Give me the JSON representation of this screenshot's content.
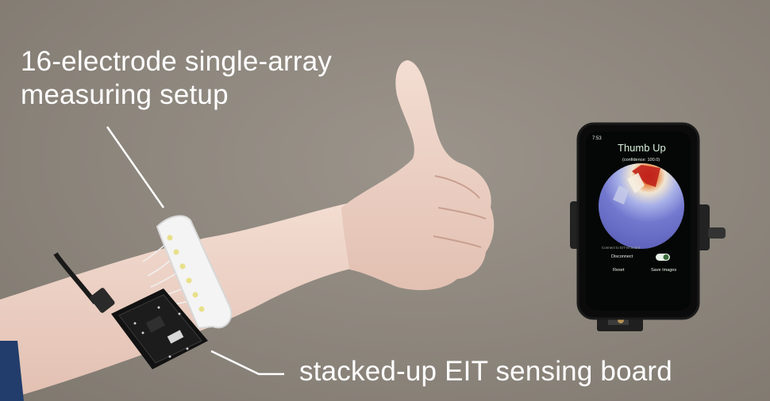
{
  "annotations": {
    "electrode_setup_line1": "16-electrode single-array",
    "electrode_setup_line2": "measuring setup",
    "sensing_board": "stacked-up EIT sensing board"
  },
  "phone_app": {
    "status_time": "7:53",
    "gesture": "Thumb Up",
    "confidence": "(confidence: 100.0)",
    "connection_note": "Connect to EIT-M Board",
    "disconnect_label": "Disconnect",
    "reset_label": "Reset",
    "save_images_label": "Save Images"
  },
  "colors": {
    "text_white": "#ffffff",
    "background": "#8e877e",
    "heatmap_hot": "#c0221b",
    "heatmap_cool": "#6a6fc9"
  }
}
